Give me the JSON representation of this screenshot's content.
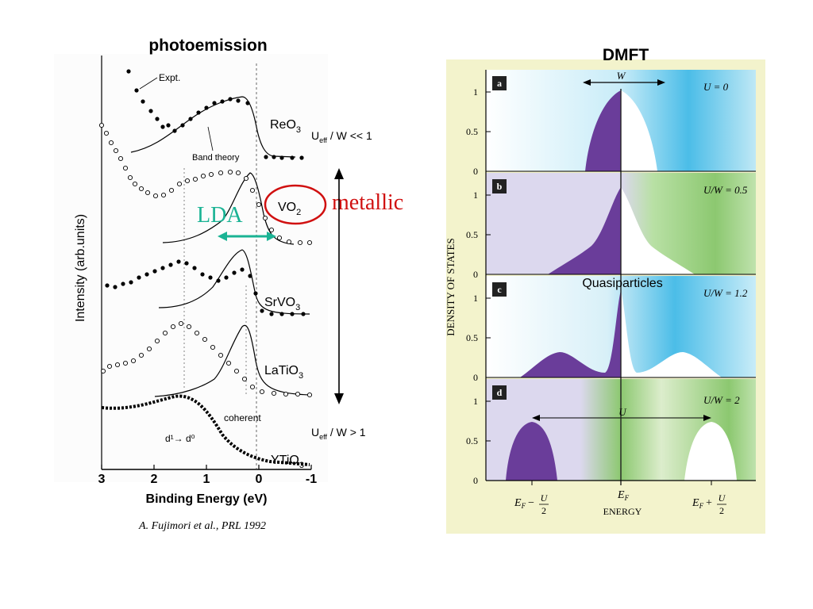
{
  "left": {
    "title": "photoemission",
    "ylabel": "Intensity (arb.units)",
    "xlabel": "Binding Energy (eV)",
    "x_ticks": [
      "3",
      "2",
      "1",
      "0",
      "-1"
    ],
    "x_tick_values": [
      3,
      2,
      1,
      0,
      -1
    ],
    "xlim": [
      3,
      -1
    ],
    "annotations": {
      "expt": "Expt.",
      "band_theory": "Band theory",
      "coherent": "coherent",
      "d1_d0": "d¹→ d⁰",
      "lda": "LDA",
      "metallic": "metallic"
    },
    "spectra": [
      {
        "name": "ReO3",
        "base": "ReO",
        "sub": "3",
        "ratio": "U",
        "ratio_sub": "eff",
        "ratio_rest": " / W << 1"
      },
      {
        "name": "VO2",
        "base": "VO",
        "sub": "2"
      },
      {
        "name": "SrVO3",
        "base": "SrVO",
        "sub": "3"
      },
      {
        "name": "LaTiO3",
        "base": "LaTiO",
        "sub": "3"
      },
      {
        "name": "YTiO3",
        "base": "YTiO",
        "sub": "3",
        "ratio": "U",
        "ratio_sub": "eff",
        "ratio_rest": " / W > 1"
      }
    ],
    "citation": "A. Fujimori et al., PRL 1992",
    "colors": {
      "lda": "#1ab394",
      "metallic": "#d01010",
      "frame": "#000000"
    }
  },
  "right": {
    "title": "DMFT",
    "ylabel": "DENSITY OF STATES",
    "xlabel": "ENERGY",
    "y_ticks": [
      "0",
      "0.5",
      "1"
    ],
    "y_tick_values": [
      0,
      0.5,
      1
    ],
    "panels": [
      {
        "letter": "a",
        "param": "U = 0",
        "W_label": "W"
      },
      {
        "letter": "b",
        "param": "U/W = 0.5"
      },
      {
        "letter": "c",
        "param": "U/W = 1.2",
        "note": "Quasiparticles"
      },
      {
        "letter": "d",
        "param": "U/W = 2",
        "U_label": "U"
      }
    ],
    "x_ticks": {
      "left": "E",
      "left_sub": "F",
      "left_op": "−",
      "frac_num": "U",
      "frac_den": "2",
      "center": "E",
      "center_sub": "F",
      "right": "E",
      "right_sub": "F",
      "right_op": "+"
    },
    "colors": {
      "purple": "#6a3d9a",
      "blue": "#4bbde8",
      "green": "#8cc870",
      "lavender": "#dcd8ee",
      "frame_bg": "#f3f3cc"
    }
  }
}
